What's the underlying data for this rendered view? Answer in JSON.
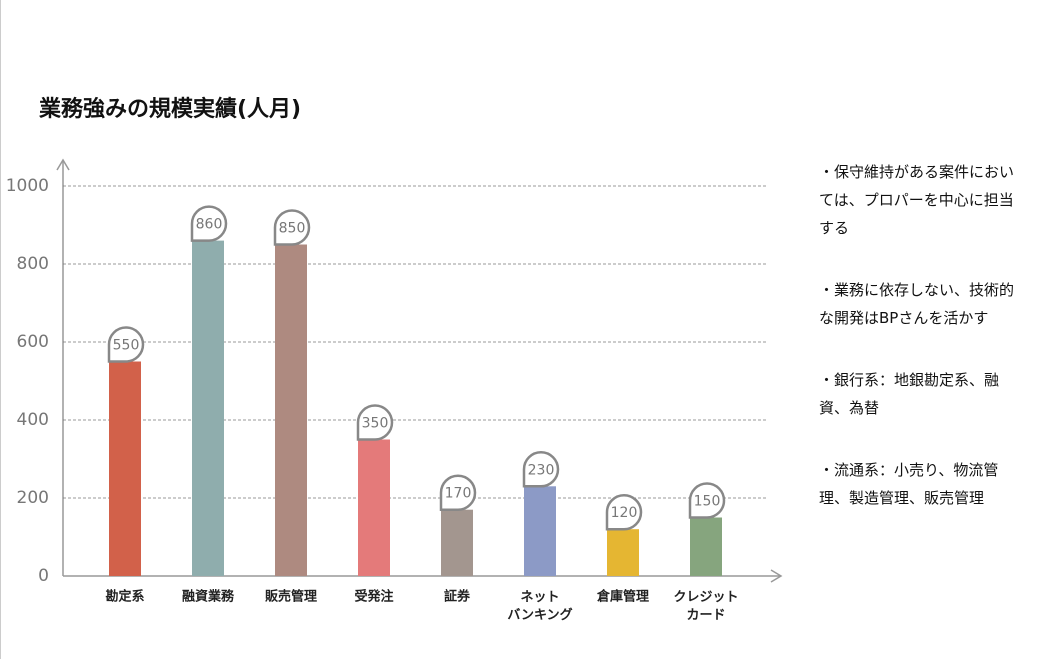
{
  "chart_data": {
    "type": "bar",
    "title": "業務強みの規模実績(人月)",
    "categories": [
      "勘定系",
      "融資業務",
      "販売管理",
      "受発注",
      "証券",
      "ネット\nバンキング",
      "倉庫管理",
      "クレジット\nカード"
    ],
    "series": [
      {
        "values": [
          550,
          860,
          850,
          350,
          170,
          230,
          120,
          150
        ],
        "colors": [
          "#d2614a",
          "#8fadad",
          "#ae8a80",
          "#e47a7a",
          "#a3968f",
          "#8c9ac6",
          "#e5b632",
          "#86a57e"
        ]
      }
    ],
    "ylim": [
      0,
      1000
    ],
    "yticks": [
      0,
      200,
      400,
      600,
      800,
      1000
    ],
    "grid": true
  },
  "notes": [
    "・保守維持がある案件においては、プロパーを中心に担当する",
    "・業務に依存しない、技術的な開発はBPさんを活かす",
    "・銀行系：地銀勘定系、融資、為替",
    "・流通系：小売り、物流管理、製造管理、販売管理"
  ]
}
